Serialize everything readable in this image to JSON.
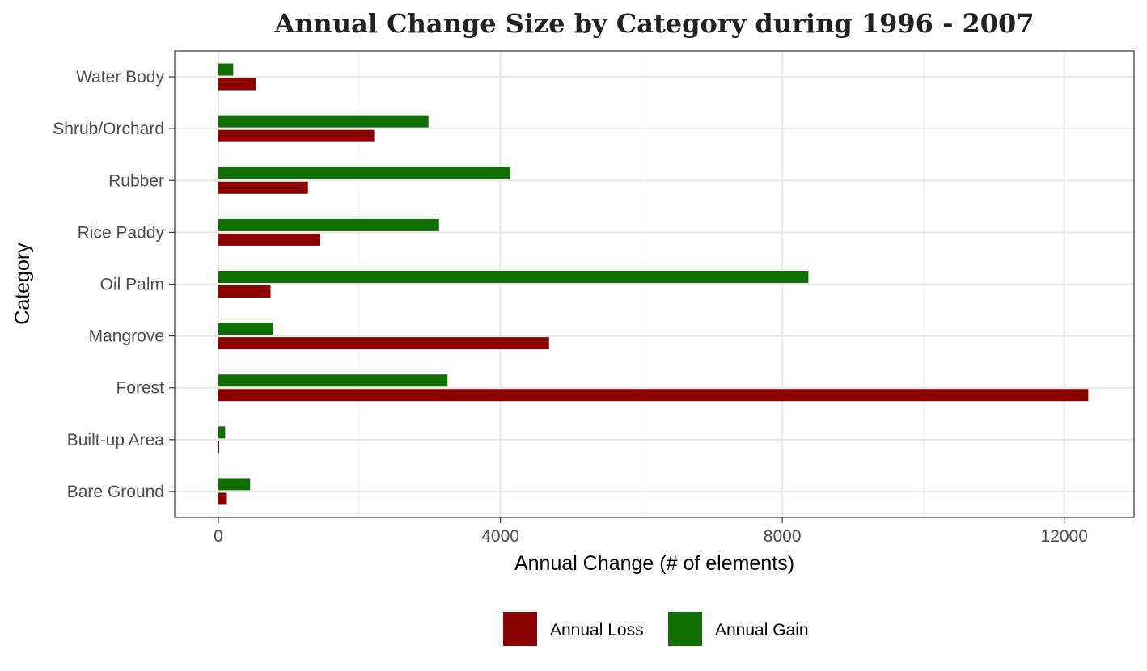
{
  "chart_data": {
    "type": "bar",
    "orientation": "horizontal",
    "title": "Annual Change Size by Category during  1996 - 2007",
    "xlabel": "Annual Change (# of elements)",
    "ylabel": "Category",
    "categories": [
      "Bare Ground",
      "Built-up Area",
      "Forest",
      "Mangrove",
      "Oil Palm",
      "Rice Paddy",
      "Rubber",
      "Shrub/Orchard",
      "Water Body"
    ],
    "series": [
      {
        "name": "Annual Loss",
        "color": "#8b0000",
        "values": [
          120,
          10,
          12340,
          4690,
          740,
          1440,
          1270,
          2210,
          530
        ]
      },
      {
        "name": "Annual Gain",
        "color": "#0f6e00",
        "values": [
          450,
          95,
          3250,
          770,
          8370,
          3130,
          4140,
          2980,
          210
        ]
      }
    ],
    "xlim": [
      -620,
      12990
    ],
    "xticks": [
      0,
      4000,
      8000,
      12000
    ],
    "xtick_labels": [
      "0",
      "4000",
      "8000",
      "12000"
    ],
    "grid": true,
    "legend_position": "bottom"
  }
}
